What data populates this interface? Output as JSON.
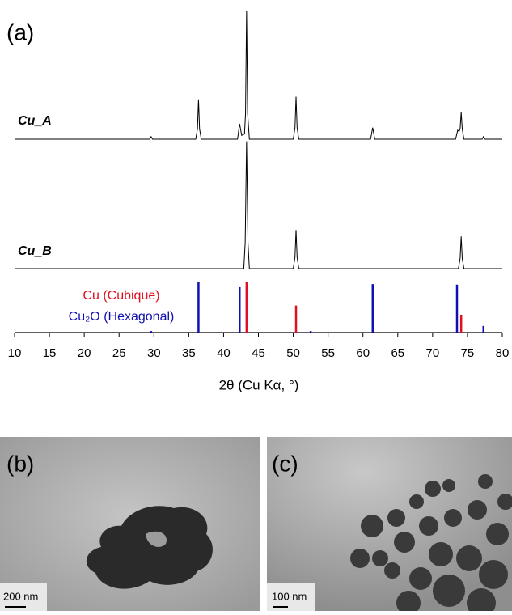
{
  "chart_data": {
    "type": "line",
    "panel_label": "(a)",
    "x_label": "2θ (Cu Kα, °)",
    "xlim": [
      10,
      80
    ],
    "xticks": [
      10,
      15,
      20,
      25,
      30,
      35,
      40,
      45,
      50,
      55,
      60,
      65,
      70,
      75,
      80
    ],
    "series": [
      {
        "name": "Cu_A",
        "color": "#000000",
        "x": [
          10,
          29.4,
          29.6,
          29.8,
          36.0,
          36.25,
          36.4,
          36.55,
          36.8,
          42.0,
          42.3,
          42.6,
          43.0,
          43.15,
          43.3,
          43.45,
          43.7,
          50.0,
          50.25,
          50.4,
          50.55,
          50.8,
          61.1,
          61.4,
          61.7,
          73.3,
          73.6,
          73.8,
          73.95,
          74.1,
          74.25,
          74.5,
          77.1,
          77.3,
          77.5,
          80
        ],
        "values": [
          0,
          0,
          2,
          0,
          0,
          8,
          31,
          8,
          0,
          0,
          12,
          3,
          4,
          20,
          100,
          20,
          0,
          0,
          9,
          33,
          9,
          0,
          0,
          9,
          0,
          0,
          7,
          6,
          8,
          21,
          8,
          0,
          0,
          2,
          0,
          0
        ]
      },
      {
        "name": "Cu_B",
        "color": "#000000",
        "x": [
          10,
          42.9,
          43.1,
          43.3,
          43.5,
          43.7,
          50.0,
          50.25,
          50.4,
          50.55,
          50.8,
          73.7,
          73.95,
          74.1,
          74.25,
          74.5,
          80
        ],
        "values": [
          0,
          0,
          20,
          99,
          20,
          0,
          0,
          9,
          30,
          9,
          0,
          0,
          8,
          25,
          8,
          0,
          0
        ]
      }
    ],
    "references": [
      {
        "name": "Cu₂O (Hexagonal)",
        "color": "#1010b0",
        "x": [
          29.6,
          36.4,
          42.3,
          52.5,
          61.4,
          73.5,
          77.3
        ],
        "values": [
          3,
          100,
          89,
          3,
          95,
          94,
          13
        ]
      },
      {
        "name": "Cu (Cubique)",
        "color": "#e01020",
        "x": [
          43.3,
          50.4,
          74.1
        ],
        "values": [
          100,
          53,
          35
        ]
      }
    ]
  },
  "panels": [
    {
      "label": "(b)",
      "scale_bar": "200 nm"
    },
    {
      "label": "(c)",
      "scale_bar": "100 nm"
    }
  ]
}
